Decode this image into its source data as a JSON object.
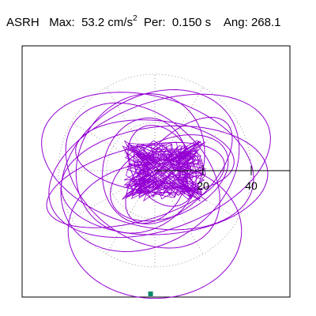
{
  "header": {
    "station": "ASRH",
    "max_label": "Max:",
    "max_value": "53.2 cm/s",
    "max_unit_superscript": "2",
    "period_label": "Per:",
    "period_value": "0.150 s",
    "angle_label": "Ang:",
    "angle_value": "268.1"
  },
  "colors": {
    "trace": "#9400D3",
    "grid": "#9a9a9a",
    "axis": "#000000",
    "marker": "#008B6B",
    "frame": "#000000"
  },
  "chart_data": {
    "type": "scatter",
    "subtype": "polar acceleration orbit (hodograph)",
    "radial_ticks": [
      20,
      40
    ],
    "radial_tick_labels": [
      "20",
      "40"
    ],
    "max_amplitude": 53.2,
    "peak_angle_deg": 268.1,
    "gridlines": "dotted concentric rings and radial spokes",
    "rings": [
      20,
      40
    ],
    "spoke_angles_deg": [
      0,
      30,
      60,
      90,
      120,
      150,
      180,
      210,
      240,
      270,
      300,
      330
    ],
    "peak_marker": {
      "amplitude": 53.2,
      "angle_deg": 268.1
    },
    "trace_loops": [
      {
        "r": 48,
        "kx": 1.0,
        "ky": 0.55,
        "rot": 20,
        "cx": 2,
        "cy": 2
      },
      {
        "r": 45,
        "kx": 1.0,
        "ky": 0.6,
        "rot": -15,
        "cx": -3,
        "cy": 4
      },
      {
        "r": 40,
        "kx": 1.0,
        "ky": 0.75,
        "rot": 35,
        "cx": -2,
        "cy": 0
      },
      {
        "r": 43,
        "kx": 1.0,
        "ky": 0.52,
        "rot": 5,
        "cx": 4,
        "cy": -4
      },
      {
        "r": 36,
        "kx": 1.0,
        "ky": 0.7,
        "rot": -40,
        "cx": -5,
        "cy": -2
      },
      {
        "r": 30,
        "kx": 1.0,
        "ky": 0.85,
        "rot": 60,
        "cx": -6,
        "cy": 3
      },
      {
        "r": 26,
        "kx": 1.0,
        "ky": 0.6,
        "rot": 25,
        "cx": 6,
        "cy": -3
      },
      {
        "r": 33,
        "kx": 1.0,
        "ky": 0.45,
        "rot": -5,
        "cx": 0,
        "cy": 6
      },
      {
        "r": 22,
        "kx": 1.0,
        "ky": 0.8,
        "rot": 80,
        "cx": -4,
        "cy": 0
      },
      {
        "r": 18,
        "kx": 1.0,
        "ky": 0.7,
        "rot": -60,
        "cx": 3,
        "cy": 2
      },
      {
        "r": 38,
        "kx": 1.0,
        "ky": 0.4,
        "rot": 15,
        "cx": -8,
        "cy": -6
      },
      {
        "r": 28,
        "kx": 1.0,
        "ky": 0.5,
        "rot": 45,
        "cx": 10,
        "cy": 0
      }
    ]
  }
}
